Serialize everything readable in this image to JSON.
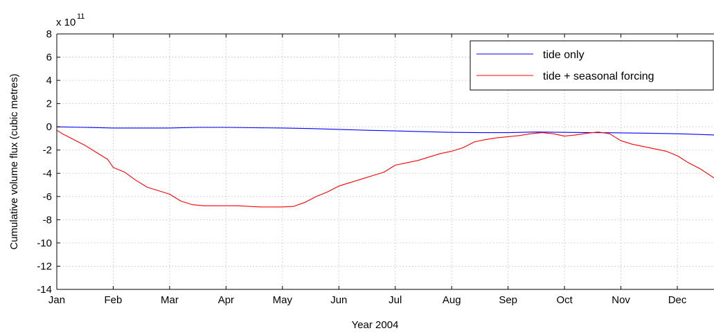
{
  "chart_data": {
    "type": "line",
    "xlabel": "Year 2004",
    "ylabel": "Cumulative volume flux (cubic metres)",
    "y_scale_label": "x 10",
    "y_scale_exponent": "11",
    "x_tick_labels": [
      "Jan",
      "Feb",
      "Mar",
      "Apr",
      "May",
      "Jun",
      "Jul",
      "Aug",
      "Sep",
      "Oct",
      "Nov",
      "Dec"
    ],
    "x_tick_values": [
      0,
      1,
      2,
      3,
      4,
      5,
      6,
      7,
      8,
      9,
      10,
      11
    ],
    "xlim": [
      0,
      11.65
    ],
    "y_ticks": [
      -14,
      -12,
      -10,
      -8,
      -6,
      -4,
      -2,
      0,
      2,
      4,
      6,
      8
    ],
    "y_tick_labels": [
      "-14",
      "-12",
      "-10",
      "-8",
      "-6",
      "-4",
      "-2",
      "0",
      "2",
      "4",
      "6",
      "8"
    ],
    "ylim": [
      -14,
      8
    ],
    "grid": true,
    "legend_position": "top-right",
    "series": [
      {
        "name": "tide only",
        "color": "#0000ff",
        "x": [
          0,
          0.5,
          1,
          1.5,
          2,
          2.5,
          3,
          3.5,
          4,
          4.5,
          5,
          5.5,
          6,
          6.5,
          7,
          7.5,
          8,
          8.5,
          9,
          9.5,
          10,
          10.5,
          11,
          11.65
        ],
        "y": [
          0,
          -0.05,
          -0.1,
          -0.1,
          -0.1,
          -0.05,
          -0.05,
          -0.08,
          -0.1,
          -0.15,
          -0.22,
          -0.3,
          -0.35,
          -0.42,
          -0.48,
          -0.5,
          -0.5,
          -0.45,
          -0.48,
          -0.5,
          -0.52,
          -0.55,
          -0.6,
          -0.7
        ]
      },
      {
        "name": "tide + seasonal forcing",
        "color": "#ff0000",
        "x": [
          0,
          0.1,
          0.3,
          0.5,
          0.7,
          0.9,
          1.0,
          1.2,
          1.4,
          1.6,
          1.8,
          2.0,
          2.2,
          2.4,
          2.6,
          2.8,
          3.0,
          3.2,
          3.4,
          3.6,
          3.8,
          4.0,
          4.2,
          4.4,
          4.6,
          4.8,
          5.0,
          5.2,
          5.4,
          5.6,
          5.8,
          6.0,
          6.2,
          6.4,
          6.6,
          6.8,
          7.0,
          7.2,
          7.4,
          7.6,
          7.8,
          8.0,
          8.2,
          8.4,
          8.6,
          8.8,
          9.0,
          9.2,
          9.4,
          9.6,
          9.8,
          10.0,
          10.2,
          10.4,
          10.6,
          10.8,
          11.0,
          11.2,
          11.4,
          11.65
        ],
        "y": [
          -0.3,
          -0.6,
          -1.1,
          -1.6,
          -2.2,
          -2.8,
          -3.5,
          -3.9,
          -4.6,
          -5.2,
          -5.5,
          -5.8,
          -6.4,
          -6.7,
          -6.8,
          -6.8,
          -6.8,
          -6.8,
          -6.85,
          -6.9,
          -6.9,
          -6.9,
          -6.85,
          -6.5,
          -6.0,
          -5.6,
          -5.1,
          -4.8,
          -4.5,
          -4.2,
          -3.9,
          -3.3,
          -3.1,
          -2.9,
          -2.6,
          -2.3,
          -2.1,
          -1.8,
          -1.3,
          -1.1,
          -0.95,
          -0.85,
          -0.75,
          -0.6,
          -0.5,
          -0.6,
          -0.8,
          -0.7,
          -0.55,
          -0.45,
          -0.6,
          -1.2,
          -1.5,
          -1.7,
          -1.9,
          -2.1,
          -2.5,
          -3.1,
          -3.6,
          -4.4
        ]
      }
    ]
  }
}
